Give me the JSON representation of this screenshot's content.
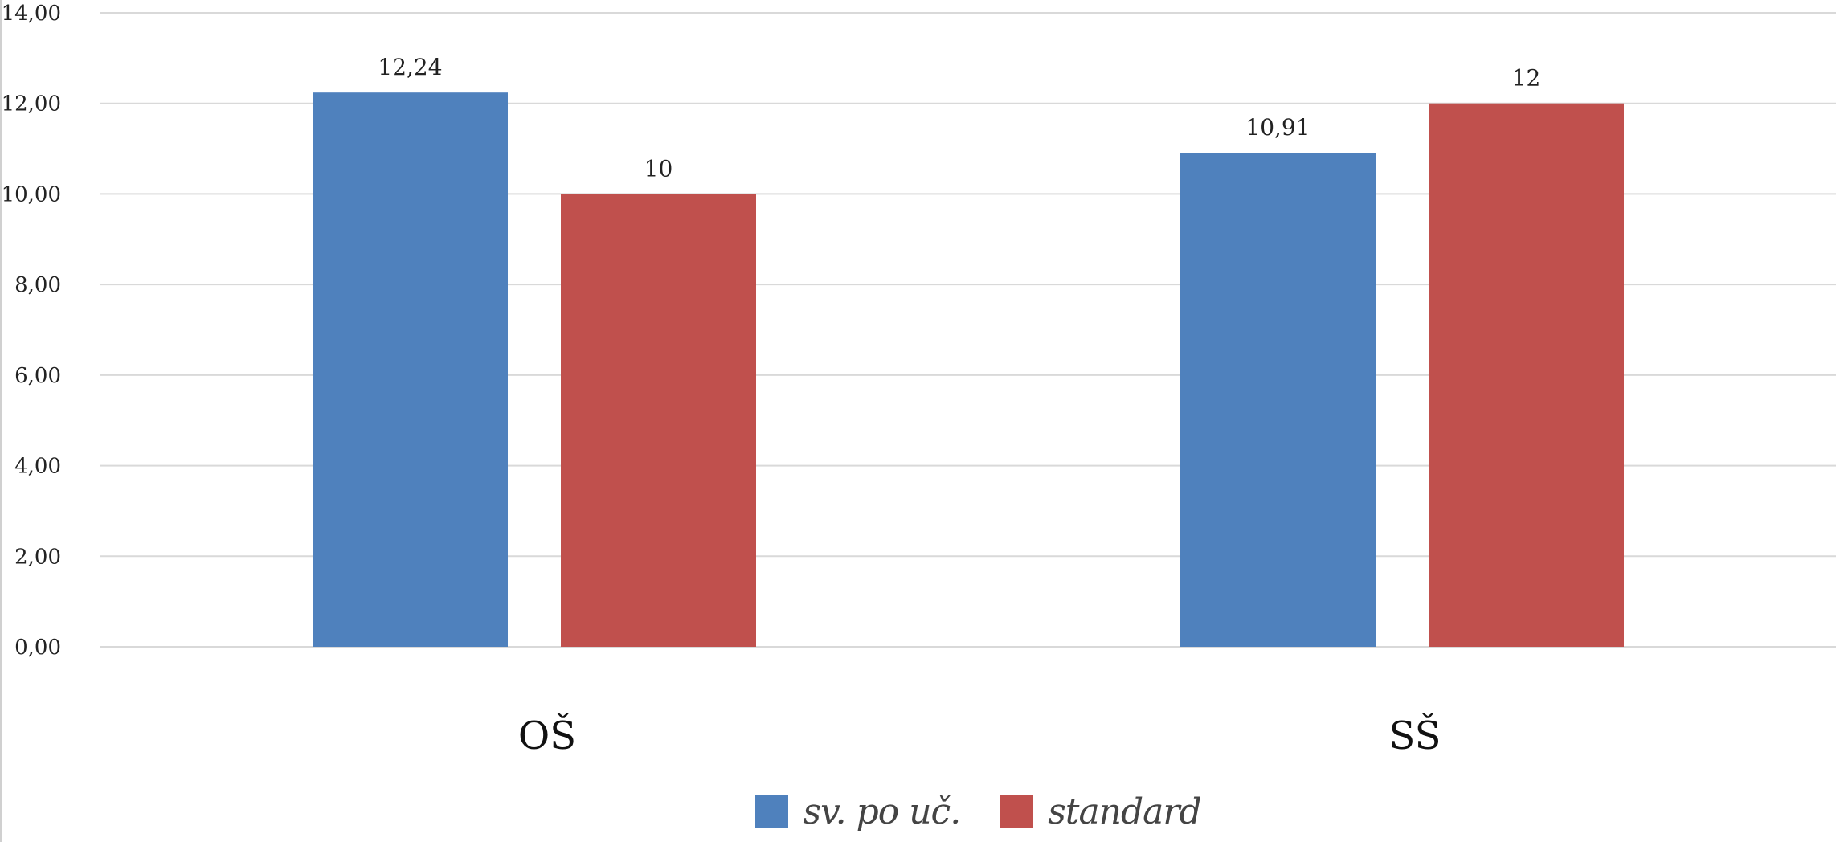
{
  "colors": {
    "series_1": "#4f81bd",
    "series_2": "#c0504d",
    "grid": "#d9d9d9"
  },
  "chart_data": {
    "type": "bar",
    "categories": [
      "OŠ",
      "SŠ"
    ],
    "series": [
      {
        "name": "sv. po uč.",
        "values": [
          12.24,
          10.91
        ],
        "labels": [
          "12,24",
          "10,91"
        ]
      },
      {
        "name": "standard",
        "values": [
          10,
          12
        ],
        "labels": [
          "10",
          "12"
        ]
      }
    ],
    "ylim": [
      0,
      14
    ],
    "yticks": [
      0,
      2,
      4,
      6,
      8,
      10,
      12,
      14
    ],
    "ytick_labels": [
      "0,00",
      "2,00",
      "4,00",
      "6,00",
      "8,00",
      "10,00",
      "12,00",
      "14,00"
    ],
    "grid": true,
    "legend_position": "bottom-center",
    "title": "",
    "xlabel": "",
    "ylabel": ""
  }
}
